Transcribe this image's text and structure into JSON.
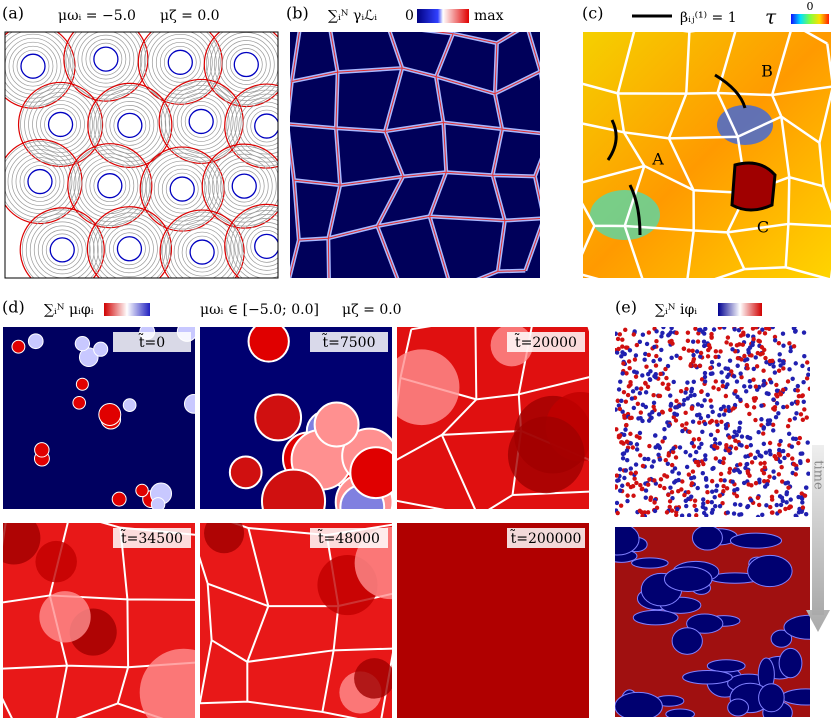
{
  "panels": {
    "a": {
      "label": "(a)",
      "param1": "μωᵢ = −5.0",
      "param2": "μζ = 0.0"
    },
    "b": {
      "label": "(b)",
      "quantity": "∑ᵢᴺ γᵢℒᵢ",
      "cbar_min": "0",
      "cbar_max": "max"
    },
    "c": {
      "label": "(c)",
      "legend": "βᵢⱼ⁽¹⁾ = 1",
      "quantity": "τ",
      "cbar_zero": "0",
      "markers": [
        "A",
        "B",
        "C"
      ]
    },
    "d": {
      "label": "(d)",
      "quantity": "∑ᵢᴺ μᵢφᵢ",
      "param1": "μωᵢ ∈ [−5.0; 0.0]",
      "param2": "μζ = 0.0",
      "times": [
        "t̃=0",
        "t̃=7500",
        "t̃=20000",
        "t̃=34500",
        "t̃=48000",
        "t̃=200000"
      ]
    },
    "e": {
      "label": "(e)",
      "quantity": "∑ᵢᴺ iφᵢ",
      "arrow": "time"
    }
  }
}
